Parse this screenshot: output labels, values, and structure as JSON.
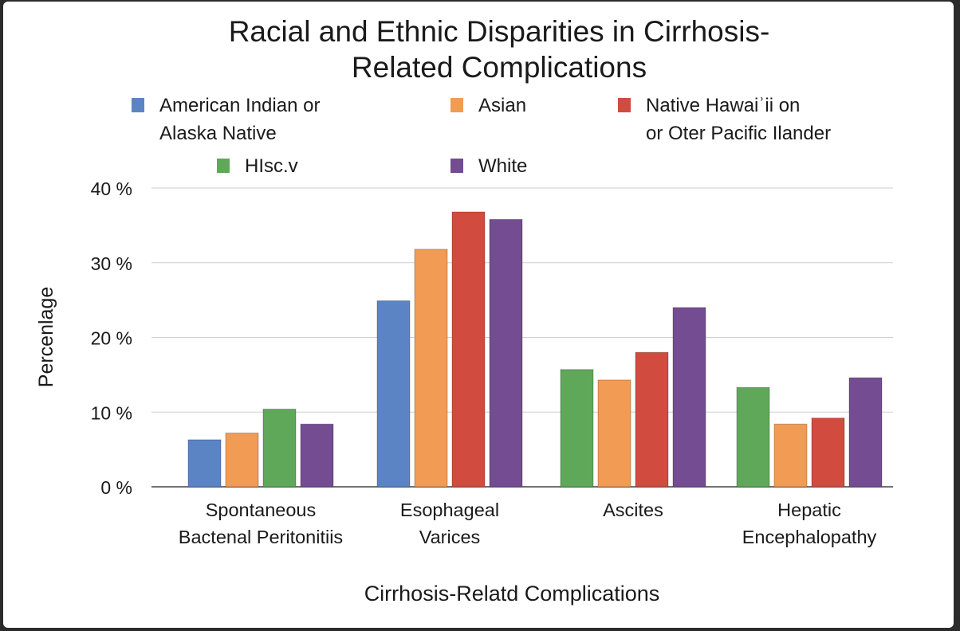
{
  "chart_data": {
    "type": "bar",
    "title": "Racial and Ethnic Disparities in Cirrhosis-\nRelated Complications",
    "xlabel": "Cirrhosis-Relatd Complications",
    "ylabel": "Percenlage",
    "ylim": [
      0,
      40
    ],
    "yticks": [
      {
        "value": 0,
        "label": "0 %"
      },
      {
        "value": 10,
        "label": "10 %"
      },
      {
        "value": 20,
        "label": "20 %"
      },
      {
        "value": 30,
        "label": "30 %"
      },
      {
        "value": 40,
        "label": "40 %"
      }
    ],
    "grid": true,
    "legend_position": "top",
    "legend": [
      {
        "name": "American Indian or\nAlaska Native",
        "color": "#5b84c4"
      },
      {
        "name": "Asian",
        "color": "#f29b54"
      },
      {
        "name": "Native Hawaiʾii on\nor Oter Pacific Ilander",
        "color": "#d14b3f"
      },
      {
        "name": "HIsc.v",
        "color": "#5fa85a"
      },
      {
        "name": "White",
        "color": "#734c92"
      }
    ],
    "categories": [
      {
        "label": "Spontaneous\nBactenal Peritonitiis",
        "bars": [
          {
            "series": "American Indian or Alaska Native",
            "value": 6.3,
            "color": "#5b84c4"
          },
          {
            "series": "Asian",
            "value": 7.2,
            "color": "#f29b54"
          },
          {
            "series": "HIsc.v",
            "value": 10.4,
            "color": "#5fa85a"
          },
          {
            "series": "White",
            "value": 8.4,
            "color": "#734c92"
          }
        ]
      },
      {
        "label": "Esophageal\nVarices",
        "bars": [
          {
            "series": "American Indian or Alaska Native",
            "value": 24.9,
            "color": "#5b84c4"
          },
          {
            "series": "Asian",
            "value": 31.8,
            "color": "#f29b54"
          },
          {
            "series": "Native Hawaiian or Other Pacific Islander",
            "value": 36.8,
            "color": "#d14b3f"
          },
          {
            "series": "White",
            "value": 35.8,
            "color": "#734c92"
          }
        ]
      },
      {
        "label": "Ascites",
        "bars": [
          {
            "series": "HIsc.v",
            "value": 15.7,
            "color": "#5fa85a"
          },
          {
            "series": "Asian",
            "value": 14.3,
            "color": "#f29b54"
          },
          {
            "series": "Native Hawaiian or Other Pacific Islander",
            "value": 18.0,
            "color": "#d14b3f"
          },
          {
            "series": "White",
            "value": 24.0,
            "color": "#734c92"
          }
        ]
      },
      {
        "label": "Hepatic\nEncephalopathy",
        "bars": [
          {
            "series": "HIsc.v",
            "value": 13.3,
            "color": "#5fa85a"
          },
          {
            "series": "Asian",
            "value": 8.4,
            "color": "#f29b54"
          },
          {
            "series": "Native Hawaiian or Other Pacific Islander",
            "value": 9.2,
            "color": "#d14b3f"
          },
          {
            "series": "White",
            "value": 14.6,
            "color": "#734c92"
          }
        ]
      }
    ]
  }
}
